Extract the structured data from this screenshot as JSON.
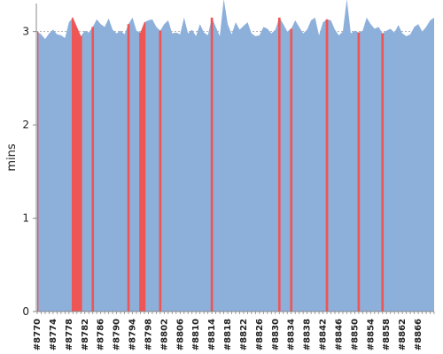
{
  "chart_data": {
    "type": "area",
    "title": "",
    "xlabel": "",
    "ylabel": "mins",
    "ylim": [
      0,
      3.3
    ],
    "yticks": [
      0,
      1,
      2,
      3
    ],
    "grid": true,
    "legend": "none",
    "colors": {
      "base": "#8db0db",
      "highlight": "#ee5555",
      "axis": "#888888",
      "grid": "#999999"
    },
    "x": [
      "#8770",
      "#8771",
      "#8772",
      "#8773",
      "#8774",
      "#8775",
      "#8776",
      "#8777",
      "#8778",
      "#8779",
      "#8780",
      "#8781",
      "#8782",
      "#8783",
      "#8784",
      "#8785",
      "#8786",
      "#8787",
      "#8788",
      "#8789",
      "#8790",
      "#8791",
      "#8792",
      "#8793",
      "#8794",
      "#8795",
      "#8796",
      "#8797",
      "#8798",
      "#8799",
      "#8800",
      "#8801",
      "#8802",
      "#8803",
      "#8804",
      "#8805",
      "#8806",
      "#8807",
      "#8808",
      "#8809",
      "#8810",
      "#8811",
      "#8812",
      "#8813",
      "#8814",
      "#8815",
      "#8816",
      "#8817",
      "#8818",
      "#8819",
      "#8820",
      "#8821",
      "#8822",
      "#8823",
      "#8824",
      "#8825",
      "#8826",
      "#8827",
      "#8828",
      "#8829",
      "#8830",
      "#8831",
      "#8832",
      "#8833",
      "#8834",
      "#8835",
      "#8836",
      "#8837",
      "#8838",
      "#8839",
      "#8840",
      "#8841",
      "#8842",
      "#8843",
      "#8844",
      "#8845",
      "#8846",
      "#8847",
      "#8848",
      "#8849",
      "#8850",
      "#8851",
      "#8852",
      "#8853",
      "#8854",
      "#8855",
      "#8856",
      "#8857",
      "#8858",
      "#8859",
      "#8860",
      "#8861",
      "#8862",
      "#8863",
      "#8864",
      "#8865",
      "#8866",
      "#8867",
      "#8868",
      "#8869",
      "#8870"
    ],
    "x_tick_labels": [
      "#8770",
      "#8774",
      "#8778",
      "#8782",
      "#8786",
      "#8790",
      "#8794",
      "#8798",
      "#8802",
      "#8806",
      "#8810",
      "#8814",
      "#8818",
      "#8822",
      "#8826",
      "#8830",
      "#8834",
      "#8838",
      "#8842",
      "#8846",
      "#8850",
      "#8854",
      "#8858",
      "#8862",
      "#8866"
    ],
    "values": [
      3.0,
      2.97,
      2.92,
      2.98,
      3.02,
      2.97,
      2.96,
      2.93,
      3.1,
      3.15,
      3.05,
      2.95,
      3.01,
      2.99,
      3.05,
      3.13,
      3.08,
      3.05,
      3.14,
      3.02,
      2.98,
      3.01,
      2.97,
      3.08,
      3.15,
      3.01,
      2.99,
      3.1,
      3.12,
      3.13,
      3.05,
      3.01,
      3.08,
      3.12,
      2.98,
      2.99,
      2.97,
      3.15,
      2.98,
      3.02,
      2.95,
      3.08,
      2.99,
      2.96,
      3.15,
      3.05,
      2.95,
      3.35,
      3.08,
      2.97,
      3.1,
      3.02,
      3.06,
      3.1,
      2.98,
      2.95,
      2.96,
      3.05,
      3.03,
      2.98,
      3.02,
      3.15,
      3.08,
      3.0,
      3.03,
      3.12,
      3.05,
      2.98,
      3.02,
      3.12,
      3.15,
      2.96,
      3.1,
      3.13,
      3.12,
      3.02,
      2.96,
      3.0,
      3.35,
      2.98,
      3.01,
      2.99,
      3.01,
      3.15,
      3.08,
      3.03,
      3.05,
      2.98,
      3.01,
      3.03,
      2.99,
      3.07,
      2.98,
      2.95,
      2.97,
      3.05,
      3.08,
      3.0,
      3.05,
      3.12,
      3.15
    ],
    "highlights": [
      {
        "from": "#8770",
        "to": "#8770"
      },
      {
        "from": "#8779",
        "to": "#8781"
      },
      {
        "from": "#8784",
        "to": "#8784"
      },
      {
        "from": "#8793",
        "to": "#8793"
      },
      {
        "from": "#8796",
        "to": "#8797"
      },
      {
        "from": "#8801",
        "to": "#8801"
      },
      {
        "from": "#8814",
        "to": "#8814"
      },
      {
        "from": "#8831",
        "to": "#8831"
      },
      {
        "from": "#8834",
        "to": "#8834"
      },
      {
        "from": "#8843",
        "to": "#8843"
      },
      {
        "from": "#8851",
        "to": "#8851"
      },
      {
        "from": "#8857",
        "to": "#8857"
      }
    ]
  }
}
